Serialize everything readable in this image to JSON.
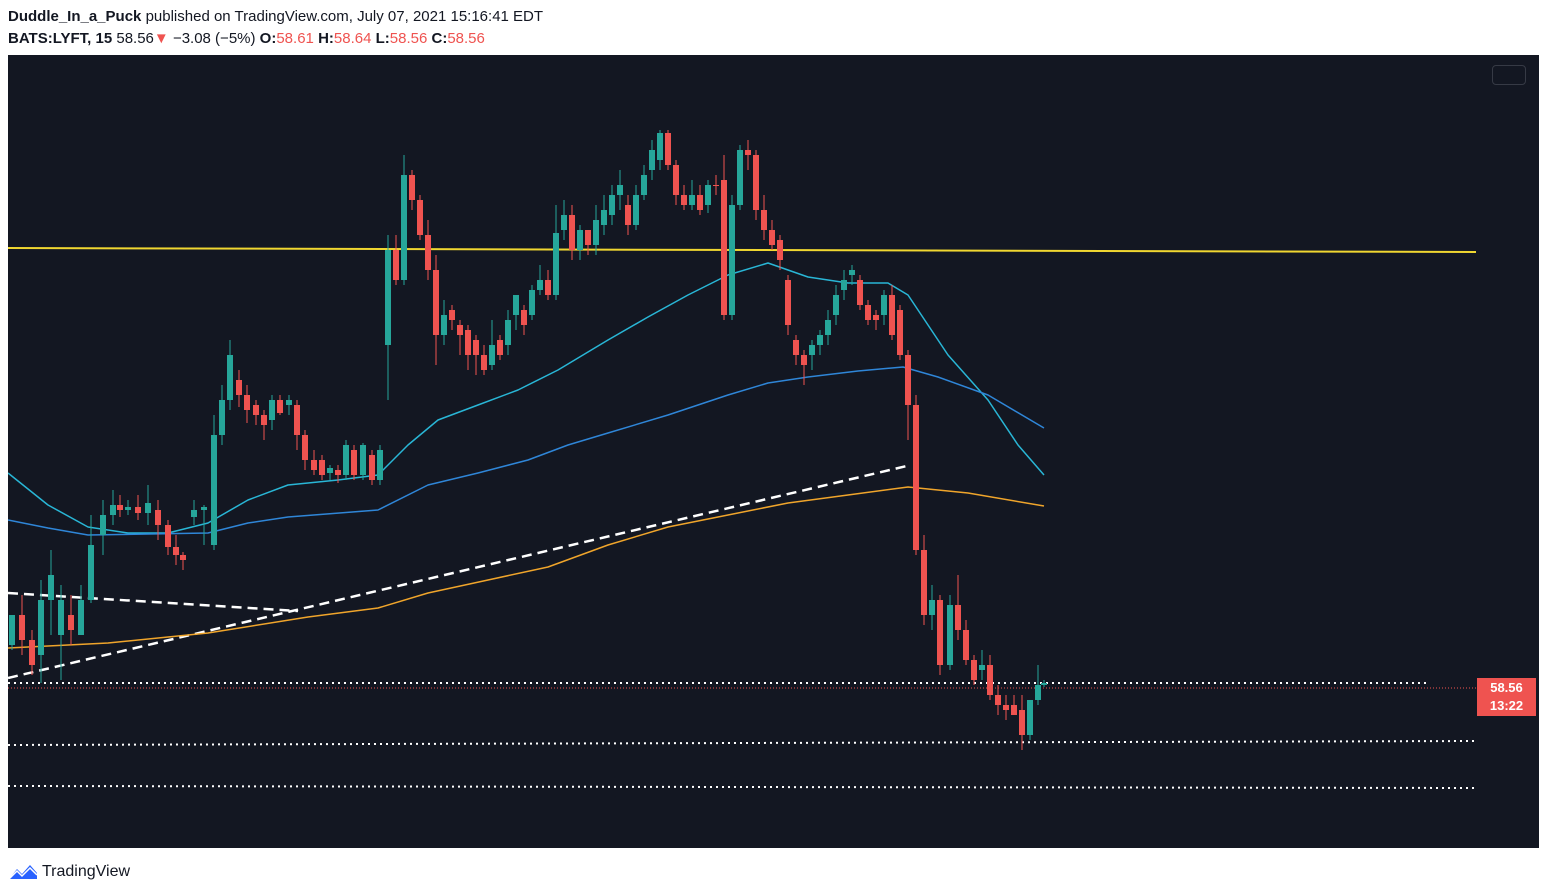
{
  "header": {
    "author": "Duddle_In_a_Puck",
    "published_text": "published on TradingView.com, July 07, 2021 15:16:41 EDT",
    "symbol": "BATS:LYFT, 15",
    "last_price": "58.56",
    "change": "−3.08 (−5%)",
    "open_label": "O:",
    "open": "58.61",
    "high_label": "H:",
    "high": "58.64",
    "low_label": "L:",
    "low": "58.56",
    "close_label": "C:",
    "close": "58.56",
    "down_arrow": "▼"
  },
  "price_tag": {
    "price": "58.56",
    "countdown": "13:22"
  },
  "footer": {
    "brand": "TradingView"
  },
  "icons": [
    "tradingview-logo-icon",
    "down-arrow-icon",
    "screenshot-icon"
  ],
  "colors": {
    "background": "#131722",
    "up_candle": "#26a69a",
    "down_candle": "#ef5350",
    "horizontal_level": "#f0d731",
    "ma_fast": "#29b6d6",
    "ma_mid": "#2f86d8",
    "ma_slow": "#f0a52b",
    "trendline": "#ffffff"
  }
}
